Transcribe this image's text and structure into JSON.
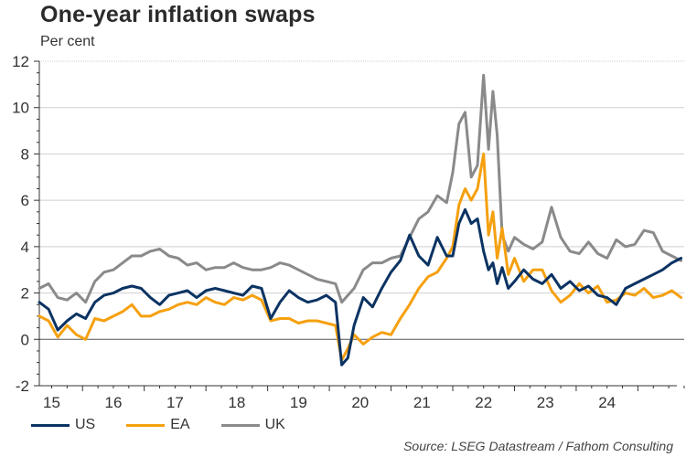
{
  "chart_data": {
    "type": "line",
    "title": "One-year inflation swaps",
    "subtitle": "Per cent",
    "xlabel": "",
    "ylabel": "Per cent",
    "ylim": [
      -2,
      12
    ],
    "yticks": [
      "-2",
      "0",
      "2",
      "4",
      "6",
      "8",
      "10",
      "12"
    ],
    "ytick_values": [
      -2,
      0,
      2,
      4,
      6,
      8,
      10,
      12
    ],
    "xlim": [
      2015.3,
      2025.75
    ],
    "xticks": [
      "15",
      "16",
      "17",
      "18",
      "19",
      "20",
      "21",
      "22",
      "23",
      "24"
    ],
    "xtick_values": [
      2015.5,
      2016.5,
      2017.5,
      2018.5,
      2019.5,
      2020.5,
      2021.5,
      2022.5,
      2023.5,
      2024.5
    ],
    "grid": true,
    "legend": "bottom-left",
    "source": "Source: LSEG Datastream / Fathom Consulting",
    "x": [
      2015.3,
      2015.45,
      2015.6,
      2015.75,
      2015.9,
      2016.05,
      2016.2,
      2016.35,
      2016.5,
      2016.65,
      2016.8,
      2016.95,
      2017.1,
      2017.25,
      2017.4,
      2017.55,
      2017.7,
      2017.85,
      2018.0,
      2018.15,
      2018.3,
      2018.45,
      2018.6,
      2018.75,
      2018.9,
      2019.05,
      2019.2,
      2019.35,
      2019.5,
      2019.65,
      2019.8,
      2019.95,
      2020.1,
      2020.2,
      2020.3,
      2020.4,
      2020.55,
      2020.7,
      2020.85,
      2021.0,
      2021.15,
      2021.3,
      2021.45,
      2021.6,
      2021.75,
      2021.9,
      2022.0,
      2022.1,
      2022.2,
      2022.3,
      2022.4,
      2022.5,
      2022.58,
      2022.65,
      2022.72,
      2022.8,
      2022.9,
      2023.0,
      2023.15,
      2023.3,
      2023.45,
      2023.6,
      2023.75,
      2023.9,
      2024.05,
      2024.2,
      2024.35,
      2024.5,
      2024.65,
      2024.8,
      2024.95,
      2025.1,
      2025.25,
      2025.4,
      2025.55,
      2025.7
    ],
    "series": [
      {
        "name": "US",
        "color": "#0b3363",
        "values": [
          1.6,
          1.3,
          0.4,
          0.8,
          1.1,
          0.9,
          1.6,
          1.9,
          2.0,
          2.2,
          2.3,
          2.2,
          1.8,
          1.5,
          1.9,
          2.0,
          2.1,
          1.8,
          2.1,
          2.2,
          2.1,
          2.0,
          1.9,
          2.3,
          2.2,
          0.9,
          1.6,
          2.1,
          1.8,
          1.6,
          1.7,
          1.9,
          1.6,
          -1.1,
          -0.8,
          0.6,
          1.8,
          1.4,
          2.2,
          2.9,
          3.4,
          4.5,
          3.6,
          3.2,
          4.4,
          3.6,
          3.6,
          5.0,
          5.6,
          5.0,
          5.2,
          3.8,
          3.0,
          3.3,
          2.4,
          3.1,
          2.2,
          2.5,
          3.0,
          2.6,
          2.4,
          2.8,
          2.2,
          2.5,
          2.1,
          2.3,
          1.9,
          1.8,
          1.5,
          2.2,
          2.4,
          2.6,
          2.8,
          3.0,
          3.3,
          3.5
        ]
      },
      {
        "name": "EA",
        "color": "#f5a00f",
        "values": [
          1.0,
          0.8,
          0.1,
          0.6,
          0.2,
          0.0,
          0.9,
          0.8,
          1.0,
          1.2,
          1.5,
          1.0,
          1.0,
          1.2,
          1.3,
          1.5,
          1.6,
          1.5,
          1.8,
          1.6,
          1.5,
          1.8,
          1.7,
          1.9,
          1.7,
          0.8,
          0.9,
          0.9,
          0.7,
          0.8,
          0.8,
          0.7,
          0.6,
          -0.9,
          -0.4,
          0.2,
          -0.2,
          0.1,
          0.3,
          0.2,
          0.9,
          1.5,
          2.2,
          2.7,
          2.9,
          3.5,
          4.0,
          5.8,
          6.5,
          6.0,
          6.5,
          8.0,
          4.5,
          5.5,
          3.5,
          4.8,
          2.8,
          3.5,
          2.5,
          3.0,
          3.0,
          2.1,
          1.6,
          1.9,
          2.4,
          2.0,
          2.3,
          1.6,
          1.7,
          2.0,
          1.9,
          2.2,
          1.8,
          1.9,
          2.1,
          1.8
        ]
      },
      {
        "name": "UK",
        "color": "#8a8a8a",
        "values": [
          2.2,
          2.4,
          1.8,
          1.7,
          2.0,
          1.6,
          2.5,
          2.9,
          3.0,
          3.3,
          3.6,
          3.6,
          3.8,
          3.9,
          3.6,
          3.5,
          3.2,
          3.3,
          3.0,
          3.1,
          3.1,
          3.3,
          3.1,
          3.0,
          3.0,
          3.1,
          3.3,
          3.2,
          3.0,
          2.8,
          2.6,
          2.5,
          2.4,
          1.6,
          1.9,
          2.2,
          3.0,
          3.3,
          3.3,
          3.5,
          3.6,
          4.4,
          5.2,
          5.5,
          6.2,
          5.9,
          7.2,
          9.3,
          9.8,
          7.0,
          7.5,
          11.4,
          8.2,
          10.7,
          8.8,
          4.5,
          3.8,
          4.4,
          4.1,
          3.9,
          4.2,
          5.7,
          4.4,
          3.8,
          3.7,
          4.2,
          3.7,
          3.5,
          4.3,
          4.0,
          4.1,
          4.7,
          4.6,
          3.8,
          3.6,
          3.4
        ]
      }
    ]
  },
  "header": {
    "title": "One-year inflation swaps",
    "subtitle": "Per cent"
  },
  "legend": {
    "items": [
      {
        "label": "US",
        "color": "#0b3363"
      },
      {
        "label": "EA",
        "color": "#f5a00f"
      },
      {
        "label": "UK",
        "color": "#8a8a8a"
      }
    ]
  },
  "footer": {
    "source": "Source: LSEG Datastream / Fathom Consulting"
  }
}
